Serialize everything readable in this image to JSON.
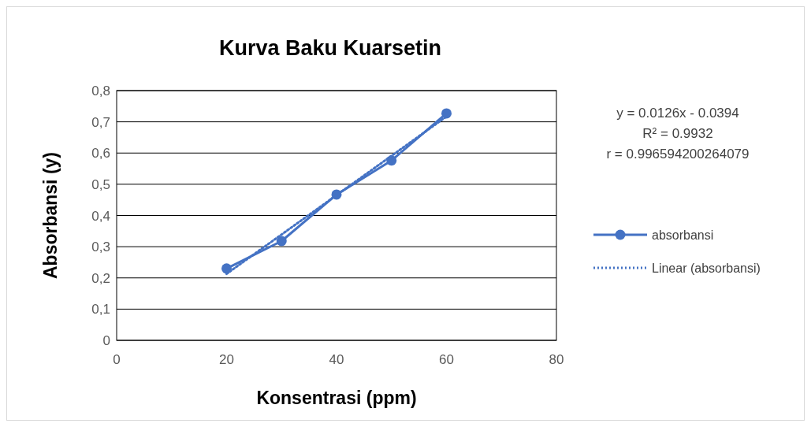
{
  "chart_data": {
    "type": "line",
    "title": "Kurva Baku Kuarsetin",
    "xlabel": "Konsentrasi (ppm)",
    "ylabel": "Absorbansi (y)",
    "xlim": [
      0,
      80
    ],
    "xticks": [
      0,
      20,
      40,
      60,
      80
    ],
    "ylim": [
      0,
      0.8
    ],
    "yticks": [
      {
        "value": 0,
        "label": "0"
      },
      {
        "value": 0.1,
        "label": "0,1"
      },
      {
        "value": 0.2,
        "label": "0,2"
      },
      {
        "value": 0.3,
        "label": "0,3"
      },
      {
        "value": 0.4,
        "label": "0,4"
      },
      {
        "value": 0.5,
        "label": "0,5"
      },
      {
        "value": 0.6,
        "label": "0,6"
      },
      {
        "value": 0.7,
        "label": "0,7"
      },
      {
        "value": 0.8,
        "label": "0,8"
      }
    ],
    "grid": "y",
    "legend": "right",
    "series": [
      {
        "name": "absorbansi",
        "color": "#4472c4",
        "marker": "circle",
        "line_style": "solid",
        "x": [
          20,
          30,
          40,
          50,
          60
        ],
        "values": [
          0.23,
          0.318,
          0.467,
          0.576,
          0.727
        ]
      },
      {
        "name": "Linear (absorbansi)",
        "color": "#4472c4",
        "marker": "none",
        "line_style": "dotted",
        "x": [
          20,
          60
        ],
        "values": [
          0.213,
          0.717
        ]
      }
    ],
    "annotations": [
      "y = 0.0126x - 0.0394",
      "R² = 0.9932",
      "r = 0.996594200264079"
    ]
  }
}
